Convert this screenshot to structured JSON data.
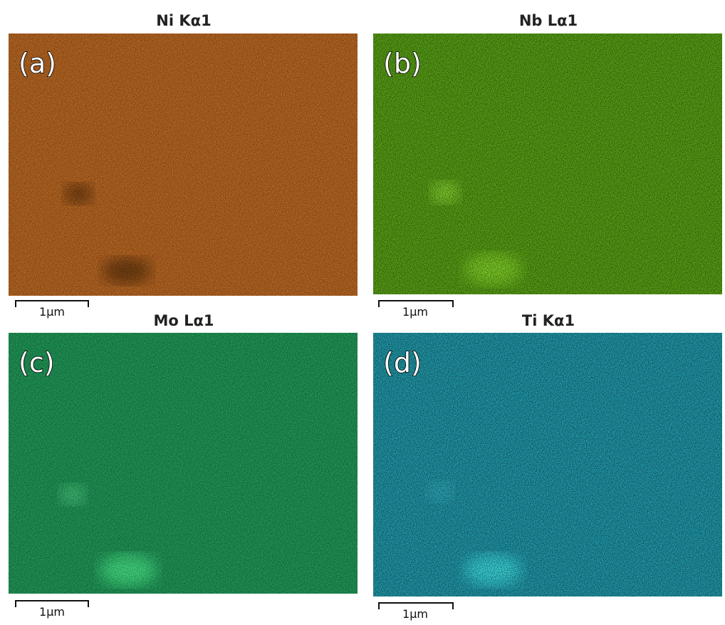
{
  "panels": [
    {
      "title": "Ni Kα1",
      "label": "(a)",
      "scale_bar": "1μm"
    },
    {
      "title": "Nb Lα1",
      "label": "(b)",
      "scale_bar": "1μm"
    },
    {
      "title": "Mo Lα1",
      "label": "(c)",
      "scale_bar": "1μm"
    },
    {
      "title": "Ti Kα1",
      "label": "(d)",
      "scale_bar": "1μm"
    }
  ]
}
